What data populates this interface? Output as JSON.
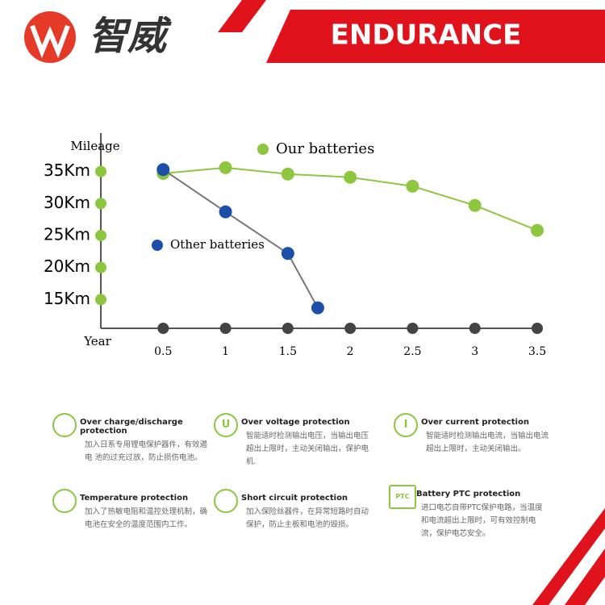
{
  "header": {
    "logo_text": "智威",
    "banner": "ENDURANCE"
  },
  "chart_data": {
    "type": "line",
    "y_label": "Mileage",
    "x_label": "Year",
    "xlim": [
      0,
      3.5
    ],
    "xticks": [
      0.5,
      1,
      1.5,
      2,
      2.5,
      3,
      3.5
    ],
    "ylim": [
      10.5,
      41
    ],
    "yticks": [
      {
        "value": 15,
        "label": "15Km"
      },
      {
        "value": 20,
        "label": "20Km"
      },
      {
        "value": 25,
        "label": "25Km"
      },
      {
        "value": 30,
        "label": "30Km"
      },
      {
        "value": 35,
        "label": "35Km"
      }
    ],
    "series": [
      {
        "name": "Our batteries",
        "color": "#8dc63f",
        "line_color": "#8dc63f",
        "x": [
          0.5,
          1,
          1.5,
          2,
          2.5,
          3,
          3.5
        ],
        "values": [
          34.7,
          35.6,
          34.6,
          34.1,
          32.7,
          29.7,
          25.8
        ]
      },
      {
        "name": "Other batteries",
        "color": "#1c4fa8",
        "line_color": "#777777",
        "x": [
          0.5,
          1,
          1.5,
          1.74
        ],
        "values": [
          35.3,
          28.7,
          22.2,
          13.7
        ]
      }
    ]
  },
  "features": [
    {
      "title": "Over charge/discharge protection",
      "text": "加入日系专用锂电保护器件，有效遏电 池的过充过放，防止损伤电池。"
    },
    {
      "title": "Over voltage protection",
      "icon": "U",
      "text": "智能适时检测输出电压，当输出电压超出上限时，主动关闭输出，保护电机."
    },
    {
      "title": "Over current protection",
      "icon": "I",
      "text": "智能适时检测输出电流，当输出电流超出上限时，主动关闭输出。"
    },
    {
      "title": "Temperature protection",
      "text": "加入了热敏电阻和温控处理机制，确电池在安全的温度范围内工作。"
    },
    {
      "title": "Short circuit protection",
      "text": "加入保险丝器件，在异常短路时自动保护，防止主板和电池的毁损。"
    },
    {
      "title": "Battery PTC protection",
      "icon": "PTC",
      "text": "进口电芯自带PTC保护电路，当温度和电流超出上限时，可有效控制电流，保护电芯安全。"
    }
  ]
}
